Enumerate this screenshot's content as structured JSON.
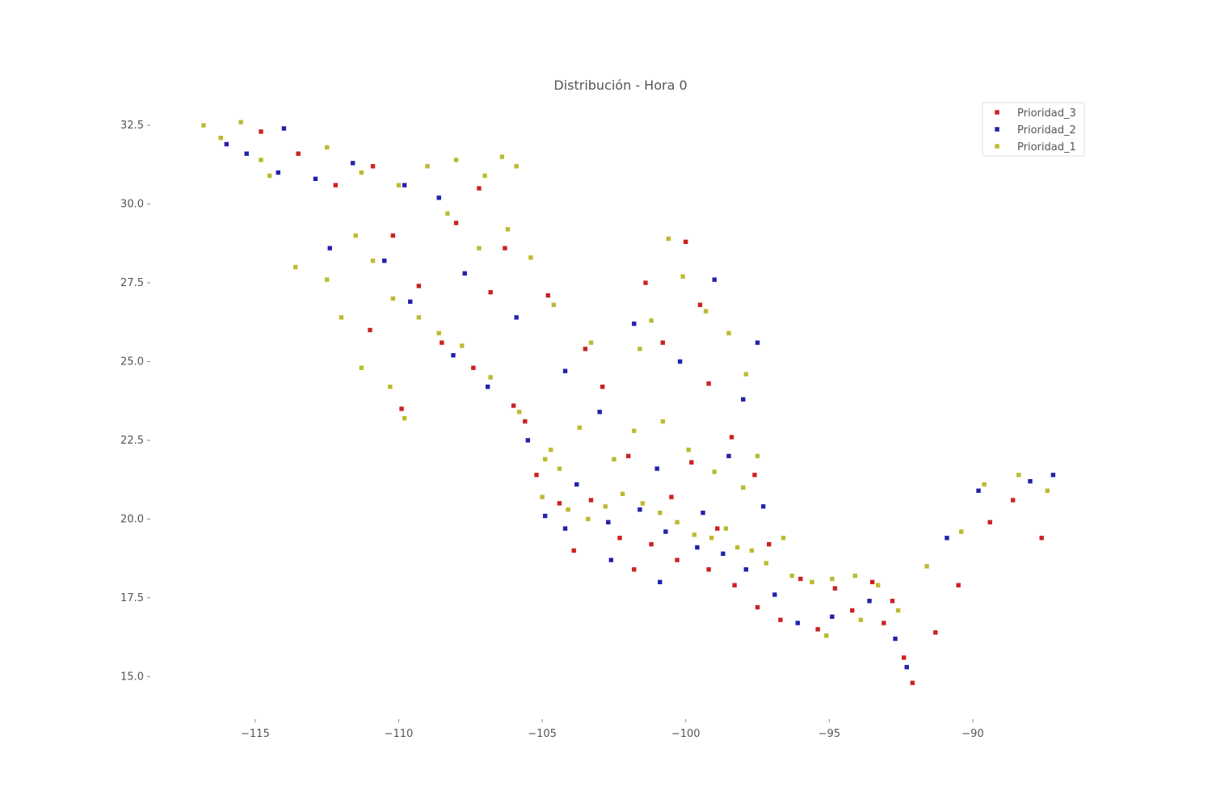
{
  "chart_data": {
    "type": "scatter",
    "title": "Distribución - Hora 0",
    "xlabel": "",
    "ylabel": "",
    "xlim": [
      -118.6,
      -86.0
    ],
    "ylim": [
      13.7,
      33.4
    ],
    "xticks": [
      -115,
      -110,
      -105,
      -100,
      -95,
      -90
    ],
    "xtick_labels": [
      "−115",
      "−110",
      "−105",
      "−100",
      "−95",
      "−90"
    ],
    "yticks": [
      15.0,
      17.5,
      20.0,
      22.5,
      25.0,
      27.5,
      30.0,
      32.5
    ],
    "ytick_labels": [
      "15.0",
      "17.5",
      "20.0",
      "22.5",
      "25.0",
      "27.5",
      "30.0",
      "32.5"
    ],
    "grid": false,
    "legend_position": "top-right",
    "series": [
      {
        "name": "Prioridad_3",
        "color": "#cc2222",
        "points": [
          [
            -114.8,
            32.3
          ],
          [
            -113.5,
            31.6
          ],
          [
            -112.2,
            30.6
          ],
          [
            -110.9,
            31.2
          ],
          [
            -110.2,
            29.0
          ],
          [
            -109.3,
            27.4
          ],
          [
            -108.5,
            25.6
          ],
          [
            -107.4,
            24.8
          ],
          [
            -106.0,
            23.6
          ],
          [
            -105.2,
            21.4
          ],
          [
            -104.4,
            20.5
          ],
          [
            -103.3,
            20.6
          ],
          [
            -102.3,
            19.4
          ],
          [
            -101.2,
            19.2
          ],
          [
            -100.3,
            18.7
          ],
          [
            -99.2,
            18.4
          ],
          [
            -98.3,
            17.9
          ],
          [
            -97.5,
            17.2
          ],
          [
            -96.7,
            16.8
          ],
          [
            -95.4,
            16.5
          ],
          [
            -94.2,
            17.1
          ],
          [
            -93.1,
            16.7
          ],
          [
            -92.4,
            15.6
          ],
          [
            -92.1,
            14.8
          ],
          [
            -91.3,
            16.4
          ],
          [
            -90.5,
            17.9
          ],
          [
            -89.4,
            19.9
          ],
          [
            -88.6,
            20.6
          ],
          [
            -87.6,
            19.4
          ],
          [
            -100.8,
            25.6
          ],
          [
            -99.2,
            24.3
          ],
          [
            -98.4,
            22.6
          ],
          [
            -97.6,
            21.4
          ],
          [
            -103.5,
            25.4
          ],
          [
            -104.8,
            27.1
          ],
          [
            -106.3,
            28.6
          ],
          [
            -105.6,
            23.1
          ],
          [
            -102.0,
            22.0
          ],
          [
            -100.5,
            20.7
          ],
          [
            -99.8,
            21.8
          ],
          [
            -98.9,
            19.7
          ],
          [
            -101.8,
            18.4
          ],
          [
            -103.9,
            19.0
          ],
          [
            -97.1,
            19.2
          ],
          [
            -96.0,
            18.1
          ],
          [
            -94.8,
            17.8
          ],
          [
            -93.5,
            18.0
          ],
          [
            -92.8,
            17.4
          ],
          [
            -111.0,
            26.0
          ],
          [
            -109.9,
            23.5
          ],
          [
            -108.0,
            29.4
          ],
          [
            -107.2,
            30.5
          ],
          [
            -106.8,
            27.2
          ],
          [
            -102.9,
            24.2
          ],
          [
            -101.4,
            27.5
          ],
          [
            -100.0,
            28.8
          ],
          [
            -99.5,
            26.8
          ]
        ]
      },
      {
        "name": "Prioridad_2",
        "color": "#2222aa",
        "points": [
          [
            -115.3,
            31.6
          ],
          [
            -114.0,
            32.4
          ],
          [
            -112.9,
            30.8
          ],
          [
            -111.6,
            31.3
          ],
          [
            -110.5,
            28.2
          ],
          [
            -109.6,
            26.9
          ],
          [
            -108.1,
            25.2
          ],
          [
            -106.9,
            24.2
          ],
          [
            -105.5,
            22.5
          ],
          [
            -104.9,
            20.1
          ],
          [
            -103.8,
            21.1
          ],
          [
            -102.7,
            19.9
          ],
          [
            -101.6,
            20.3
          ],
          [
            -100.7,
            19.6
          ],
          [
            -99.6,
            19.1
          ],
          [
            -98.7,
            18.9
          ],
          [
            -97.9,
            18.4
          ],
          [
            -96.9,
            17.6
          ],
          [
            -96.1,
            16.7
          ],
          [
            -94.9,
            16.9
          ],
          [
            -93.6,
            17.4
          ],
          [
            -92.7,
            16.2
          ],
          [
            -92.3,
            15.3
          ],
          [
            -90.9,
            19.4
          ],
          [
            -89.8,
            20.9
          ],
          [
            -88.0,
            21.2
          ],
          [
            -87.2,
            21.4
          ],
          [
            -98.0,
            23.8
          ],
          [
            -97.5,
            25.6
          ],
          [
            -99.0,
            27.6
          ],
          [
            -100.2,
            25.0
          ],
          [
            -101.8,
            26.2
          ],
          [
            -103.0,
            23.4
          ],
          [
            -104.2,
            24.7
          ],
          [
            -105.9,
            26.4
          ],
          [
            -107.7,
            27.8
          ],
          [
            -108.6,
            30.2
          ],
          [
            -109.8,
            30.6
          ],
          [
            -112.4,
            28.6
          ],
          [
            -114.2,
            31.0
          ],
          [
            -116.0,
            31.9
          ],
          [
            -101.0,
            21.6
          ],
          [
            -99.4,
            20.2
          ],
          [
            -97.3,
            20.4
          ],
          [
            -98.5,
            22.0
          ],
          [
            -100.9,
            18.0
          ],
          [
            -102.6,
            18.7
          ],
          [
            -104.2,
            19.7
          ]
        ]
      },
      {
        "name": "Prioridad_1",
        "color": "#bbbb33",
        "points": [
          [
            -116.8,
            32.5
          ],
          [
            -116.2,
            32.1
          ],
          [
            -115.5,
            32.6
          ],
          [
            -114.8,
            31.4
          ],
          [
            -112.5,
            31.8
          ],
          [
            -111.3,
            31.0
          ],
          [
            -110.0,
            30.6
          ],
          [
            -109.0,
            31.2
          ],
          [
            -108.0,
            31.4
          ],
          [
            -107.0,
            30.9
          ],
          [
            -106.4,
            31.5
          ],
          [
            -105.9,
            31.2
          ],
          [
            -111.5,
            29.0
          ],
          [
            -110.9,
            28.2
          ],
          [
            -110.2,
            27.0
          ],
          [
            -109.3,
            26.4
          ],
          [
            -108.6,
            25.9
          ],
          [
            -107.8,
            25.5
          ],
          [
            -106.8,
            24.5
          ],
          [
            -105.8,
            23.4
          ],
          [
            -104.7,
            22.2
          ],
          [
            -104.4,
            21.6
          ],
          [
            -105.0,
            20.7
          ],
          [
            -104.1,
            20.3
          ],
          [
            -103.4,
            20.0
          ],
          [
            -102.8,
            20.4
          ],
          [
            -102.2,
            20.8
          ],
          [
            -101.5,
            20.5
          ],
          [
            -100.9,
            20.2
          ],
          [
            -100.3,
            19.9
          ],
          [
            -99.7,
            19.5
          ],
          [
            -99.1,
            19.4
          ],
          [
            -98.6,
            19.7
          ],
          [
            -98.2,
            19.1
          ],
          [
            -97.7,
            19.0
          ],
          [
            -97.2,
            18.6
          ],
          [
            -96.6,
            19.4
          ],
          [
            -96.3,
            18.2
          ],
          [
            -95.6,
            18.0
          ],
          [
            -94.9,
            18.1
          ],
          [
            -94.1,
            18.2
          ],
          [
            -93.3,
            17.9
          ],
          [
            -92.6,
            17.1
          ],
          [
            -101.8,
            22.8
          ],
          [
            -100.8,
            23.1
          ],
          [
            -99.9,
            22.2
          ],
          [
            -99.0,
            21.5
          ],
          [
            -98.0,
            21.0
          ],
          [
            -97.5,
            22.0
          ],
          [
            -97.9,
            24.6
          ],
          [
            -98.5,
            25.9
          ],
          [
            -99.3,
            26.6
          ],
          [
            -100.1,
            27.7
          ],
          [
            -100.6,
            28.9
          ],
          [
            -101.2,
            26.3
          ],
          [
            -101.6,
            25.4
          ],
          [
            -103.3,
            25.6
          ],
          [
            -104.6,
            26.8
          ],
          [
            -105.4,
            28.3
          ],
          [
            -106.2,
            29.2
          ],
          [
            -107.2,
            28.6
          ],
          [
            -108.3,
            29.7
          ],
          [
            -112.5,
            27.6
          ],
          [
            -112.0,
            26.4
          ],
          [
            -111.3,
            24.8
          ],
          [
            -110.3,
            24.2
          ],
          [
            -109.8,
            23.2
          ],
          [
            -113.6,
            28.0
          ],
          [
            -114.5,
            30.9
          ],
          [
            -89.6,
            21.1
          ],
          [
            -88.4,
            21.4
          ],
          [
            -87.4,
            20.9
          ],
          [
            -90.4,
            19.6
          ],
          [
            -91.6,
            18.5
          ],
          [
            -102.5,
            21.9
          ],
          [
            -103.7,
            22.9
          ],
          [
            -104.9,
            21.9
          ],
          [
            -95.1,
            16.3
          ],
          [
            -93.9,
            16.8
          ]
        ]
      }
    ]
  }
}
